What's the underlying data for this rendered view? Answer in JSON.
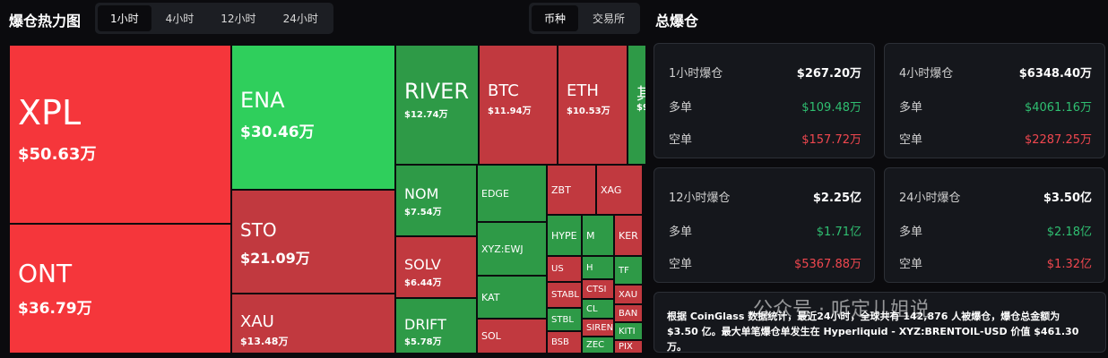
{
  "header": {
    "title": "爆仓热力图",
    "time_tabs": [
      "1小时",
      "4小时",
      "12小时",
      "24小时"
    ],
    "view_tabs": [
      "币种",
      "交易所"
    ]
  },
  "treemap": {
    "tiles": [
      {
        "label": "XPL",
        "value": "$50.63万",
        "color": "#f5363b"
      },
      {
        "label": "ONT",
        "value": "$36.79万",
        "color": "#f5363b"
      },
      {
        "label": "ENA",
        "value": "$30.46万",
        "color": "#2fcf5c"
      },
      {
        "label": "STO",
        "value": "$21.09万",
        "color": "#c1393f"
      },
      {
        "label": "XAU",
        "value": "$13.48万",
        "color": "#c1393f"
      },
      {
        "label": "RIVER",
        "value": "$12.74万",
        "color": "#2e9a47"
      },
      {
        "label": "BTC",
        "value": "$11.94万",
        "color": "#c1393f"
      },
      {
        "label": "ETH",
        "value": "$10.53万",
        "color": "#c1393f"
      },
      {
        "label": "其",
        "value": "$9",
        "color": "#2e9a47"
      },
      {
        "label": "NOM",
        "value": "$7.54万",
        "color": "#2e9a47"
      },
      {
        "label": "SOLV",
        "value": "$6.44万",
        "color": "#c1393f"
      },
      {
        "label": "DRIFT",
        "value": "$5.78万",
        "color": "#2e9a47"
      },
      {
        "label": "EDGE",
        "color": "#2e9a47"
      },
      {
        "label": "XYZ:EWJ",
        "color": "#2e9a47"
      },
      {
        "label": "KAT",
        "color": "#2e9a47"
      },
      {
        "label": "SOL",
        "color": "#c1393f"
      },
      {
        "label": "ZBT",
        "color": "#c1393f"
      },
      {
        "label": "XAG",
        "color": "#c1393f"
      },
      {
        "label": "HYPE",
        "color": "#2e9a47"
      },
      {
        "label": "M",
        "color": "#2e9a47"
      },
      {
        "label": "KER",
        "color": "#c1393f"
      },
      {
        "label": "US",
        "color": "#c1393f"
      },
      {
        "label": "STABL",
        "color": "#c1393f"
      },
      {
        "label": "STBL",
        "color": "#2e9a47"
      },
      {
        "label": "BSB",
        "color": "#c1393f"
      },
      {
        "label": "H",
        "color": "#2e9a47"
      },
      {
        "label": "CTSI",
        "color": "#c1393f"
      },
      {
        "label": "CL",
        "color": "#2e9a47"
      },
      {
        "label": "SIREN",
        "color": "#c1393f"
      },
      {
        "label": "ZEC",
        "color": "#2e9a47"
      },
      {
        "label": "TF",
        "color": "#2e9a47"
      },
      {
        "label": "XAU",
        "color": "#c1393f"
      },
      {
        "label": "BAN",
        "color": "#c1393f"
      },
      {
        "label": "KITI",
        "color": "#2e9a47"
      },
      {
        "label": "PIX",
        "color": "#c1393f"
      }
    ]
  },
  "summary": {
    "title": "总爆仓",
    "cards": [
      {
        "title": "1小时爆仓",
        "total": "$267.20万",
        "long_label": "多单",
        "long": "$109.48万",
        "short_label": "空单",
        "short": "$157.72万"
      },
      {
        "title": "4小时爆仓",
        "total": "$6348.40万",
        "long_label": "多单",
        "long": "$4061.16万",
        "short_label": "空单",
        "short": "$2287.25万"
      },
      {
        "title": "12小时爆仓",
        "total": "$2.25亿",
        "long_label": "多单",
        "long": "$1.71亿",
        "short_label": "空单",
        "short": "$5367.88万"
      },
      {
        "title": "24小时爆仓",
        "total": "$3.50亿",
        "long_label": "多单",
        "long": "$2.18亿",
        "short_label": "空单",
        "short": "$1.32亿"
      }
    ],
    "note": "根据 CoinGlass 数据统计，最近24小时，全球共有 142,876 人被爆仓，爆仓总金额为 $3.50 亿。最大单笔爆仓单发生在 Hyperliquid - XYZ:BRENTOIL-USD 价值 $461.30万。",
    "watermark": "公众号 · 听定儿姐说"
  }
}
